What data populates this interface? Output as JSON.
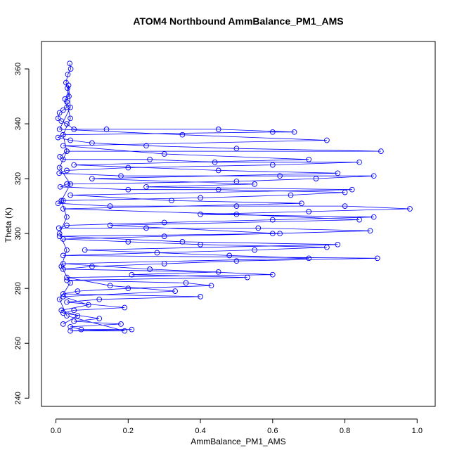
{
  "chart_data": {
    "type": "line",
    "title": "ATOM4 Northbound AmmBalance_PM1_AMS",
    "xlabel": "AmmBalance_PM1_AMS",
    "ylabel": "Theta (K)",
    "xlim": [
      -0.04,
      1.05
    ],
    "ylim": [
      237,
      370
    ],
    "x_ticks": [
      0.0,
      0.2,
      0.4,
      0.6,
      0.8,
      1.0
    ],
    "x_tick_labels": [
      "0.0",
      "0.2",
      "0.4",
      "0.6",
      "0.8",
      "1.0"
    ],
    "y_ticks": [
      240,
      260,
      280,
      300,
      320,
      340,
      360
    ],
    "y_tick_labels": [
      "240",
      "260",
      "280",
      "300",
      "320",
      "340",
      "360"
    ],
    "grid": false,
    "marker": "open-circle",
    "color": "#0000ff",
    "series": [
      {
        "points": [
          [
            0.038,
            362
          ],
          [
            0.041,
            360
          ],
          [
            0.033,
            358
          ],
          [
            0.028,
            355
          ],
          [
            0.032,
            353
          ],
          [
            0.036,
            350
          ],
          [
            0.025,
            349
          ],
          [
            0.03,
            346
          ],
          [
            0.02,
            345
          ],
          [
            0.01,
            344
          ],
          [
            0.006,
            342
          ],
          [
            0.015,
            341
          ],
          [
            0.03,
            340
          ],
          [
            0.05,
            338
          ],
          [
            0.14,
            338
          ],
          [
            0.45,
            338
          ],
          [
            0.66,
            337
          ],
          [
            0.6,
            337
          ],
          [
            0.02,
            336
          ],
          [
            0.006,
            335
          ],
          [
            0.04,
            334
          ],
          [
            0.1,
            333
          ],
          [
            0.25,
            332
          ],
          [
            0.5,
            331
          ],
          [
            0.9,
            330
          ],
          [
            0.03,
            330
          ],
          [
            0.011,
            328
          ],
          [
            0.02,
            327
          ],
          [
            0.26,
            327
          ],
          [
            0.44,
            326
          ],
          [
            0.84,
            326
          ],
          [
            0.6,
            325
          ],
          [
            0.2,
            324
          ],
          [
            0.03,
            323
          ],
          [
            0.009,
            322
          ],
          [
            0.18,
            321
          ],
          [
            0.62,
            321
          ],
          [
            0.88,
            321
          ],
          [
            0.72,
            320
          ],
          [
            0.5,
            319
          ],
          [
            0.03,
            318
          ],
          [
            0.012,
            317
          ],
          [
            0.2,
            316
          ],
          [
            0.45,
            316
          ],
          [
            0.8,
            315
          ],
          [
            0.65,
            314
          ],
          [
            0.4,
            313
          ],
          [
            0.02,
            312
          ],
          [
            0.006,
            311
          ],
          [
            0.15,
            310
          ],
          [
            0.5,
            310
          ],
          [
            0.8,
            310
          ],
          [
            0.98,
            309
          ],
          [
            0.7,
            308
          ],
          [
            0.4,
            307
          ],
          [
            0.88,
            306
          ],
          [
            0.6,
            305
          ],
          [
            0.3,
            304
          ],
          [
            0.03,
            303
          ],
          [
            0.008,
            302
          ],
          [
            0.25,
            302
          ],
          [
            0.56,
            302
          ],
          [
            0.87,
            301
          ],
          [
            0.6,
            300
          ],
          [
            0.3,
            299
          ],
          [
            0.02,
            298
          ],
          [
            0.2,
            297
          ],
          [
            0.4,
            296
          ],
          [
            0.75,
            295
          ],
          [
            0.55,
            294
          ],
          [
            0.28,
            293
          ],
          [
            0.02,
            292
          ],
          [
            0.89,
            291
          ],
          [
            0.5,
            290
          ],
          [
            0.3,
            289
          ],
          [
            0.1,
            288
          ],
          [
            0.02,
            287
          ],
          [
            0.45,
            286
          ],
          [
            0.21,
            285
          ],
          [
            0.53,
            284
          ],
          [
            0.03,
            283
          ],
          [
            0.36,
            282
          ],
          [
            0.43,
            281
          ],
          [
            0.2,
            280
          ],
          [
            0.06,
            279
          ],
          [
            0.02,
            278
          ],
          [
            0.4,
            277
          ],
          [
            0.12,
            276
          ],
          [
            0.03,
            275
          ],
          [
            0.19,
            273
          ],
          [
            0.05,
            272
          ],
          [
            0.02,
            271
          ],
          [
            0.12,
            269
          ],
          [
            0.05,
            268
          ],
          [
            0.18,
            267
          ],
          [
            0.04,
            266
          ],
          [
            0.07,
            265
          ],
          [
            0.21,
            265
          ],
          [
            0.04,
            264.5
          ],
          [
            0.19,
            264.5
          ],
          [
            0.03,
            270
          ],
          [
            0.01,
            276
          ],
          [
            0.04,
            282
          ],
          [
            0.015,
            288
          ],
          [
            0.03,
            294
          ],
          [
            0.01,
            300
          ],
          [
            0.03,
            306
          ],
          [
            0.015,
            312
          ],
          [
            0.04,
            318
          ],
          [
            0.01,
            324
          ],
          [
            0.03,
            330
          ],
          [
            0.02,
            336
          ],
          [
            0.04,
            342
          ],
          [
            0.03,
            348
          ],
          [
            0.035,
            354
          ],
          [
            0.04,
            346
          ],
          [
            0.01,
            338
          ],
          [
            0.35,
            336
          ],
          [
            0.75,
            334
          ],
          [
            0.02,
            332
          ],
          [
            0.3,
            329
          ],
          [
            0.7,
            327
          ],
          [
            0.05,
            325
          ],
          [
            0.45,
            323
          ],
          [
            0.78,
            322
          ],
          [
            0.1,
            320
          ],
          [
            0.55,
            318
          ],
          [
            0.25,
            317
          ],
          [
            0.82,
            316
          ],
          [
            0.04,
            314
          ],
          [
            0.32,
            312
          ],
          [
            0.68,
            311
          ],
          [
            0.02,
            309
          ],
          [
            0.5,
            307
          ],
          [
            0.84,
            305
          ],
          [
            0.15,
            303
          ],
          [
            0.62,
            300
          ],
          [
            0.01,
            299
          ],
          [
            0.35,
            297
          ],
          [
            0.78,
            296
          ],
          [
            0.08,
            294
          ],
          [
            0.48,
            292
          ],
          [
            0.7,
            291
          ],
          [
            0.02,
            289
          ],
          [
            0.26,
            287
          ],
          [
            0.6,
            285
          ],
          [
            0.03,
            284
          ],
          [
            0.15,
            281
          ],
          [
            0.33,
            279
          ],
          [
            0.02,
            277
          ],
          [
            0.09,
            274
          ],
          [
            0.015,
            272
          ],
          [
            0.06,
            270
          ],
          [
            0.02,
            267
          ]
        ]
      }
    ]
  }
}
